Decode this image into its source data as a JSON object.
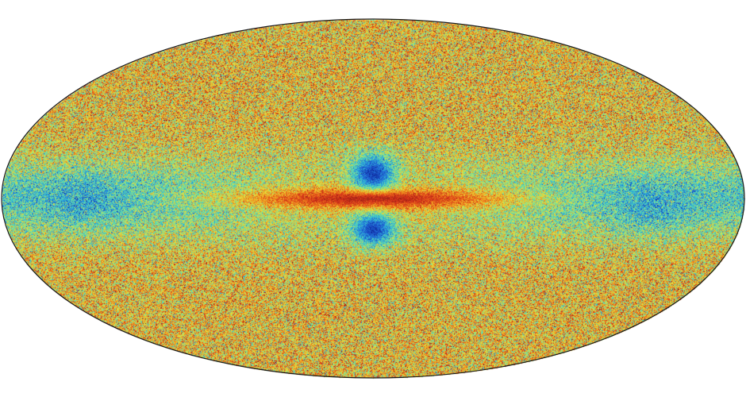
{
  "map": {
    "projection": "mollweide",
    "subject": "all-sky map",
    "outline_color": "#1a1a1a",
    "background_color": "#ffffff",
    "colormap": [
      "#0a1f8f",
      "#1f5fd6",
      "#2fb6d8",
      "#6fe0a0",
      "#e8e03a",
      "#f08a1c",
      "#d8321a",
      "#7a1a12"
    ],
    "features": [
      {
        "name": "galactic-plane-band",
        "color": "#d8321a"
      },
      {
        "name": "bulge-north-lobe",
        "color": "#1f4fcf"
      },
      {
        "name": "bulge-south-lobe",
        "color": "#1f4fcf"
      },
      {
        "name": "disk-wings",
        "color": "#2fd0b0"
      }
    ]
  }
}
